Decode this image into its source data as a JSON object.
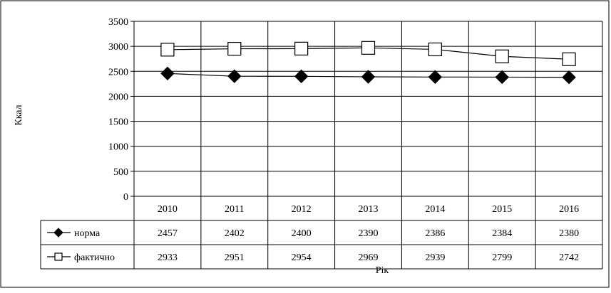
{
  "chart_data": {
    "type": "line",
    "title": "",
    "xlabel": "Рік",
    "ylabel": "Ккал",
    "categories": [
      "2010",
      "2011",
      "2012",
      "2013",
      "2014",
      "2015",
      "2016"
    ],
    "ylim": [
      0,
      3500
    ],
    "yticks": [
      0,
      500,
      1000,
      1500,
      2000,
      2500,
      3000,
      3500
    ],
    "grid": true,
    "legend": "data-table-left",
    "series": [
      {
        "name": "норма",
        "marker": "diamond-filled",
        "color": "#000000",
        "values": [
          2457,
          2402,
          2400,
          2390,
          2386,
          2384,
          2380
        ]
      },
      {
        "name": "фактично",
        "marker": "square-open",
        "color": "#000000",
        "values": [
          2933,
          2951,
          2954,
          2969,
          2939,
          2799,
          2742
        ]
      }
    ]
  }
}
